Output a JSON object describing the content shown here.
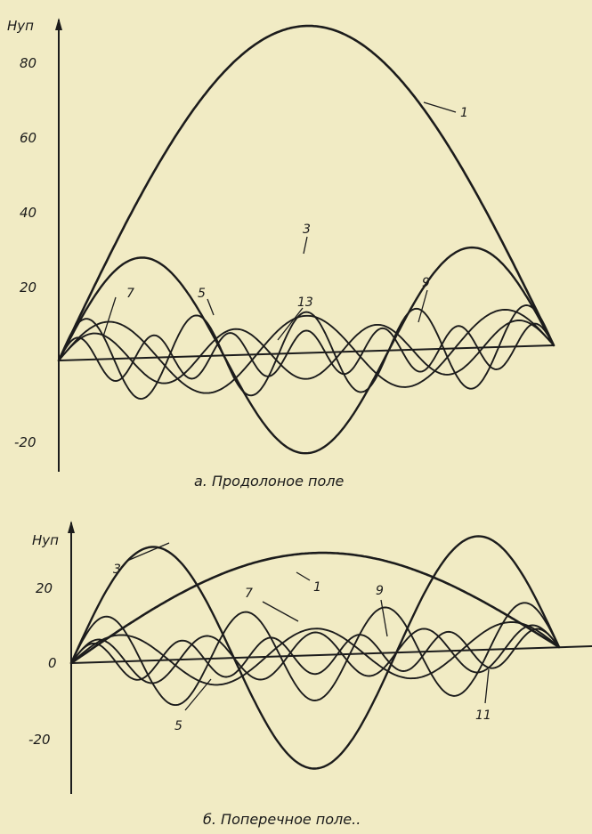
{
  "chart_data": [
    {
      "type": "line",
      "ylabel": "Нуп",
      "ylim": [
        -26,
        94
      ],
      "yticks": [
        80,
        60,
        40,
        20,
        -20
      ],
      "caption": "а. Продолоное поле",
      "series": [
        {
          "name": "1",
          "harmonic": 1,
          "amplitude": 88
        },
        {
          "name": "3",
          "harmonic": 3,
          "amplitude": 27
        },
        {
          "name": "5",
          "harmonic": 5,
          "amplitude": 10
        },
        {
          "name": "7",
          "harmonic": 7,
          "amplitude": 7
        },
        {
          "name": "9",
          "harmonic": 9,
          "amplitude": 11
        },
        {
          "name": "13",
          "harmonic": 13,
          "amplitude": 6
        }
      ]
    },
    {
      "type": "line",
      "ylabel": "Нуп",
      "ylim": [
        -32,
        36
      ],
      "yticks": [
        20,
        0,
        -20
      ],
      "caption": "б. Поперечное поле..",
      "series": [
        {
          "name": "1",
          "harmonic": 1,
          "amplitude": 27
        },
        {
          "name": "3",
          "harmonic": 3,
          "amplitude": 30
        },
        {
          "name": "5",
          "harmonic": 5,
          "amplitude": 7
        },
        {
          "name": "7",
          "harmonic": 7,
          "amplitude": 12
        },
        {
          "name": "9",
          "harmonic": 9,
          "amplitude": 6
        },
        {
          "name": "11",
          "harmonic": 11,
          "amplitude": 5
        }
      ]
    }
  ]
}
